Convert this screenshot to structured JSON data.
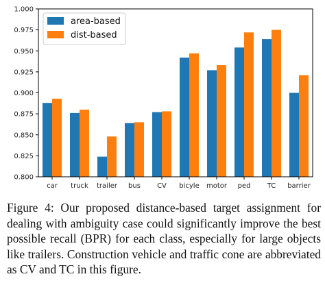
{
  "chart_data": {
    "type": "bar",
    "categories": [
      "car",
      "truck",
      "trailer",
      "bus",
      "CV",
      "bicyle",
      "motor",
      "ped",
      "TC",
      "barrier"
    ],
    "series": [
      {
        "name": "area-based",
        "color": "#1f77b4",
        "values": [
          0.888,
          0.876,
          0.824,
          0.864,
          0.877,
          0.942,
          0.927,
          0.954,
          0.964,
          0.9
        ]
      },
      {
        "name": "dist-based",
        "color": "#ff7f0e",
        "values": [
          0.893,
          0.88,
          0.848,
          0.865,
          0.878,
          0.947,
          0.933,
          0.972,
          0.975,
          0.921
        ]
      }
    ],
    "yticks": [
      "0.800",
      "0.825",
      "0.850",
      "0.875",
      "0.900",
      "0.925",
      "0.950",
      "0.975",
      "1.000"
    ],
    "ylim": [
      0.8,
      1.0
    ],
    "grid": false,
    "legend": "top-left",
    "title": "",
    "xlabel": "",
    "ylabel": ""
  },
  "caption": "Figure 4: Our proposed distance-based target assignment for dealing with ambiguity case could significantly improve the best possible recall (BPR) for each class, especially for large objects like trailers. Construction vehicle and traffic cone are abbreviated as CV and TC in this figure."
}
